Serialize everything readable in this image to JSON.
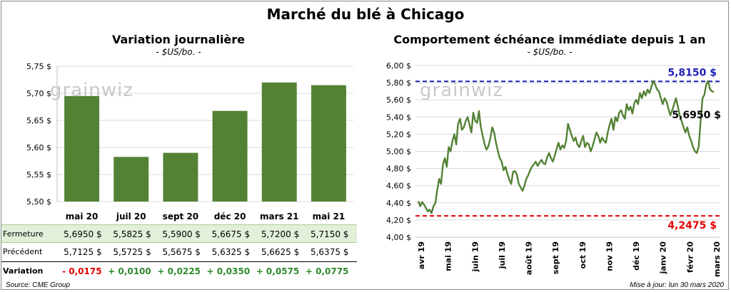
{
  "page": {
    "title": "Marché du blé à Chicago",
    "source": "Source: CME Group",
    "update": "Mise à jour: lun 30 mars 2020",
    "watermark": "grainwiz"
  },
  "chart_data": [
    {
      "type": "bar",
      "title": "Variation journalière",
      "subtitle": "- $US/bo. -",
      "categories": [
        "mai 20",
        "juil 20",
        "sept 20",
        "déc 20",
        "mars 21",
        "mai 21"
      ],
      "values": [
        5.695,
        5.5825,
        5.59,
        5.6675,
        5.72,
        5.715
      ],
      "ylim": [
        5.5,
        5.75
      ],
      "yticks": [
        "5,50 $",
        "5,55 $",
        "5,60 $",
        "5,65 $",
        "5,70 $",
        "5,75 $"
      ],
      "color": "#548235",
      "table": {
        "rows": [
          {
            "label": "Fermeture",
            "values": [
              "5,6950  $",
              "5,5825  $",
              "5,5900  $",
              "5,6675  $",
              "5,7200  $",
              "5,7150  $"
            ]
          },
          {
            "label": "Précédent",
            "values": [
              "5,7125  $",
              "5,5725  $",
              "5,5675  $",
              "5,6325  $",
              "5,6625  $",
              "5,6375  $"
            ]
          },
          {
            "label": "Variation",
            "values": [
              "- 0,0175",
              "+ 0,0100",
              "+ 0,0225",
              "+ 0,0350",
              "+ 0,0575",
              "+ 0,0775"
            ]
          }
        ],
        "variation_colors": [
          "#e60000",
          "#2e8b2e",
          "#2e8b2e",
          "#2e8b2e",
          "#2e8b2e",
          "#2e8b2e"
        ]
      }
    },
    {
      "type": "line",
      "title": "Comportement  échéance immédiate depuis 1 an",
      "subtitle": "- $US/bo. -",
      "ylim": [
        4.0,
        6.0
      ],
      "yticks": [
        "4,00 $",
        "4,20 $",
        "4,40 $",
        "4,60 $",
        "4,80 $",
        "5,00 $",
        "5,20 $",
        "5,40 $",
        "5,60 $",
        "5,80 $",
        "6,00 $"
      ],
      "xticks": [
        "avr 19",
        "mai 19",
        "juin 19",
        "juil 19",
        "août 19",
        "sept 19",
        "oct 19",
        "nov 19",
        "déc 19",
        "janv 20",
        "févr 20",
        "mars 20"
      ],
      "color": "#548235",
      "high": {
        "value": 5.815,
        "label": "5,8150  $",
        "color": "#1f1fb4"
      },
      "low": {
        "value": 4.2475,
        "label": "4,2475  $",
        "color": "#e60000"
      },
      "last": {
        "value": 5.695,
        "label": "5,6950 $"
      },
      "series": [
        {
          "values": [
            4.42,
            4.36,
            4.41,
            4.38,
            4.34,
            4.3,
            4.32,
            4.28,
            4.36,
            4.4,
            4.55,
            4.68,
            4.62,
            4.85,
            4.92,
            4.82,
            5.05,
            5.0,
            5.12,
            5.2,
            5.08,
            5.32,
            5.38,
            5.25,
            5.28,
            5.35,
            5.4,
            5.31,
            5.22,
            5.45,
            5.36,
            5.33,
            5.47,
            5.28,
            5.18,
            5.08,
            5.02,
            5.06,
            5.15,
            5.28,
            5.22,
            5.1,
            5.0,
            4.92,
            4.88,
            4.78,
            4.82,
            4.74,
            4.67,
            4.62,
            4.76,
            4.77,
            4.73,
            4.62,
            4.58,
            4.54,
            4.6,
            4.68,
            4.72,
            4.78,
            4.82,
            4.85,
            4.88,
            4.83,
            4.87,
            4.9,
            4.86,
            4.85,
            4.93,
            4.98,
            4.92,
            4.88,
            4.95,
            5.03,
            5.1,
            5.02,
            5.07,
            5.04,
            5.12,
            5.32,
            5.25,
            5.18,
            5.12,
            5.16,
            5.08,
            5.05,
            5.12,
            5.18,
            5.05,
            5.1,
            5.08,
            5.0,
            5.06,
            5.14,
            5.22,
            5.18,
            5.1,
            5.16,
            5.12,
            5.1,
            5.22,
            5.31,
            5.38,
            5.25,
            5.4,
            5.35,
            5.45,
            5.48,
            5.42,
            5.38,
            5.55,
            5.48,
            5.52,
            5.44,
            5.56,
            5.6,
            5.55,
            5.68,
            5.62,
            5.7,
            5.65,
            5.72,
            5.68,
            5.75,
            5.82,
            5.78,
            5.72,
            5.7,
            5.62,
            5.55,
            5.62,
            5.58,
            5.5,
            5.42,
            5.48,
            5.55,
            5.62,
            5.52,
            5.42,
            5.35,
            5.28,
            5.22,
            5.28,
            5.18,
            5.12,
            5.05,
            5.0,
            4.98,
            5.06,
            5.35,
            5.62,
            5.66,
            5.78,
            5.82,
            5.72,
            5.7,
            5.69
          ]
        }
      ]
    }
  ]
}
